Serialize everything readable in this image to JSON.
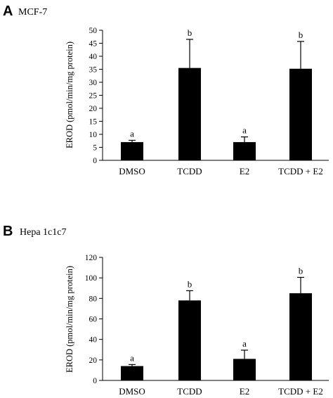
{
  "chart_data": [
    {
      "panel": "A",
      "title": "MCF-7",
      "type": "bar",
      "ylabel": "EROD (pmol/min/mg protein)",
      "xlabel": "",
      "ylim": [
        0,
        50
      ],
      "yticks": [
        0,
        5,
        10,
        15,
        20,
        25,
        30,
        35,
        40,
        45,
        50
      ],
      "categories": [
        "DMSO",
        "TCDD",
        "E2",
        "TCDD + E2"
      ],
      "values": [
        7.0,
        35.5,
        7.0,
        35.2
      ],
      "errors": [
        0.7,
        11.0,
        2.0,
        10.5
      ],
      "significance": [
        "a",
        "b",
        "a",
        "b"
      ],
      "bar_color": "#000000"
    },
    {
      "panel": "B",
      "title": "Hepa 1c1c7",
      "type": "bar",
      "ylabel": "EROD (pmol/min/mg protein)",
      "xlabel": "",
      "ylim": [
        0,
        120
      ],
      "yticks": [
        0,
        20,
        40,
        60,
        80,
        100,
        120
      ],
      "categories": [
        "DMSO",
        "TCDD",
        "E2",
        "TCDD + E2"
      ],
      "values": [
        14,
        78,
        21,
        85
      ],
      "errors": [
        1.5,
        9.5,
        8.5,
        15.5
      ],
      "significance": [
        "a",
        "b",
        "a",
        "b"
      ],
      "bar_color": "#000000"
    }
  ]
}
